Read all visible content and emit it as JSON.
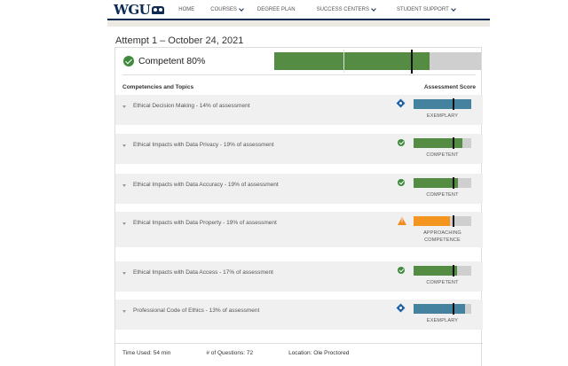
{
  "nav": {
    "logo": "WGU",
    "items": [
      {
        "label": "HOME",
        "dropdown": false
      },
      {
        "label": "COURSES",
        "dropdown": true
      },
      {
        "label": "DEGREE PLAN",
        "dropdown": false
      },
      {
        "label": "SUCCESS CENTERS",
        "dropdown": true
      },
      {
        "label": "STUDENT SUPPORT",
        "dropdown": true
      }
    ]
  },
  "attempt": {
    "title": "Attempt 1 – October 24, 2021",
    "result_label": "Competent 80%",
    "score_percent": 80,
    "passing_marker_percent": 66
  },
  "section": {
    "left_header": "Competencies and Topics",
    "right_header": "Assessment Score"
  },
  "topics": [
    {
      "label": "Ethical Decision Making - 14% of assessment",
      "level": "EXEMPLARY",
      "icon": "diamond-icon",
      "color": "#4582a0",
      "fill": 100,
      "marker": 68
    },
    {
      "label": "Ethical Impacts with Data Privacy - 19% of assessment",
      "level": "COMPETENT",
      "icon": "check-circle-icon",
      "color": "#548c43",
      "fill": 85,
      "marker": 68
    },
    {
      "label": "Ethical Impacts with Data Accuracy - 19% of assessment",
      "level": "COMPETENT",
      "icon": "check-circle-icon",
      "color": "#548c43",
      "fill": 77,
      "marker": 68
    },
    {
      "label": "Ethical Impacts with Data Property - 19% of assessment",
      "level": "APPROACHING COMPETENCE",
      "icon": "warning-icon",
      "color": "#f4951f",
      "fill": 63,
      "marker": 68
    },
    {
      "label": "Ethical Impacts with Data Access - 17% of assessment",
      "level": "COMPETENT",
      "icon": "check-circle-icon",
      "color": "#548c43",
      "fill": 75,
      "marker": 68
    },
    {
      "label": "Professional Code of Ethics - 13% of assessment",
      "level": "EXEMPLARY",
      "icon": "diamond-icon",
      "color": "#4582a0",
      "fill": 89,
      "marker": 68
    }
  ],
  "footer": {
    "time_used": "Time Used: 54 min",
    "questions": "# of Questions: 72",
    "location": "Location: Ole Proctored"
  }
}
